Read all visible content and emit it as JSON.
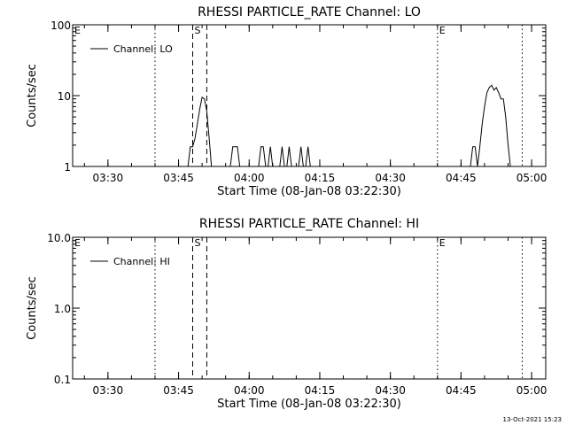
{
  "footer": {
    "timestamp": "13-Oct-2021 15:23"
  },
  "chart_data": [
    {
      "type": "line",
      "title": "RHESSI PARTICLE_RATE Channel: LO",
      "xlabel": "Start Time (08-Jan-08 03:22:30)",
      "ylabel": "Counts/sec",
      "yscale": "log",
      "xlim": [
        "03:22:30",
        "05:03:00"
      ],
      "ylim": [
        1,
        100
      ],
      "x_ticks": [
        "03:30",
        "03:45",
        "04:00",
        "04:15",
        "04:30",
        "04:45",
        "05:00"
      ],
      "y_ticks": [
        "1",
        "10",
        "100"
      ],
      "legend": {
        "label": "Channel: LO",
        "position": "top-left"
      },
      "markers": [
        {
          "label": "E",
          "time": "03:22:30",
          "style": "dotted"
        },
        {
          "label": "",
          "time": "03:40:00",
          "style": "dotted"
        },
        {
          "label": "S",
          "time": "03:48:00",
          "style": "dashed"
        },
        {
          "label": "",
          "time": "03:51:00",
          "style": "dashed"
        },
        {
          "label": "E",
          "time": "04:40:00",
          "style": "dotted"
        },
        {
          "label": "",
          "time": "04:58:00",
          "style": "dotted"
        }
      ],
      "series": [
        {
          "name": "Channel: LO",
          "x": [
            "03:47:00",
            "03:47:30",
            "03:48:00",
            "03:48:30",
            "03:49:00",
            "03:49:30",
            "03:50:00",
            "03:50:30",
            "03:51:00",
            "03:51:30",
            "03:52:00",
            "03:56:00",
            "03:56:30",
            "03:57:30",
            "03:58:00",
            "04:02:00",
            "04:02:30",
            "04:03:00",
            "04:03:30",
            "04:04:00",
            "04:04:30",
            "04:05:00",
            "04:06:30",
            "04:07:00",
            "04:07:30",
            "04:08:00",
            "04:08:30",
            "04:09:00",
            "04:10:30",
            "04:11:00",
            "04:11:30",
            "04:12:00",
            "04:12:30",
            "04:13:00",
            "04:47:00",
            "04:47:30",
            "04:48:00",
            "04:48:30",
            "04:49:00",
            "04:49:30",
            "04:50:00",
            "04:50:30",
            "04:51:00",
            "04:51:30",
            "04:52:00",
            "04:52:30",
            "04:53:00",
            "04:53:30",
            "04:54:00",
            "04:54:30",
            "04:55:00",
            "04:55:30"
          ],
          "y": [
            1,
            1.9,
            1.9,
            2.5,
            4,
            6.5,
            9.5,
            9,
            6,
            2.5,
            1,
            1,
            1.9,
            1.9,
            1,
            1,
            1.9,
            1.9,
            1,
            1,
            1.9,
            1,
            1,
            1.9,
            1,
            1,
            1.9,
            1,
            1,
            1.9,
            1,
            1,
            1.9,
            1,
            1,
            1.9,
            1.9,
            1,
            1.9,
            4,
            7,
            11,
            13,
            14,
            12,
            13,
            11,
            9,
            9,
            5,
            2,
            1
          ]
        }
      ]
    },
    {
      "type": "line",
      "title": "RHESSI PARTICLE_RATE Channel: HI",
      "xlabel": "Start Time (08-Jan-08 03:22:30)",
      "ylabel": "Counts/sec",
      "yscale": "log",
      "xlim": [
        "03:22:30",
        "05:03:00"
      ],
      "ylim": [
        0.1,
        10
      ],
      "x_ticks": [
        "03:30",
        "03:45",
        "04:00",
        "04:15",
        "04:30",
        "04:45",
        "05:00"
      ],
      "y_ticks": [
        "0.1",
        "1.0",
        "10.0"
      ],
      "legend": {
        "label": "Channel: HI",
        "position": "top-left"
      },
      "markers": [
        {
          "label": "E",
          "time": "03:22:30",
          "style": "dotted"
        },
        {
          "label": "",
          "time": "03:40:00",
          "style": "dotted"
        },
        {
          "label": "S",
          "time": "03:48:00",
          "style": "dashed"
        },
        {
          "label": "",
          "time": "03:51:00",
          "style": "dashed"
        },
        {
          "label": "E",
          "time": "04:40:00",
          "style": "dotted"
        },
        {
          "label": "",
          "time": "04:58:00",
          "style": "dotted"
        }
      ],
      "series": [
        {
          "name": "Channel: HI",
          "x": [],
          "y": []
        }
      ]
    }
  ]
}
